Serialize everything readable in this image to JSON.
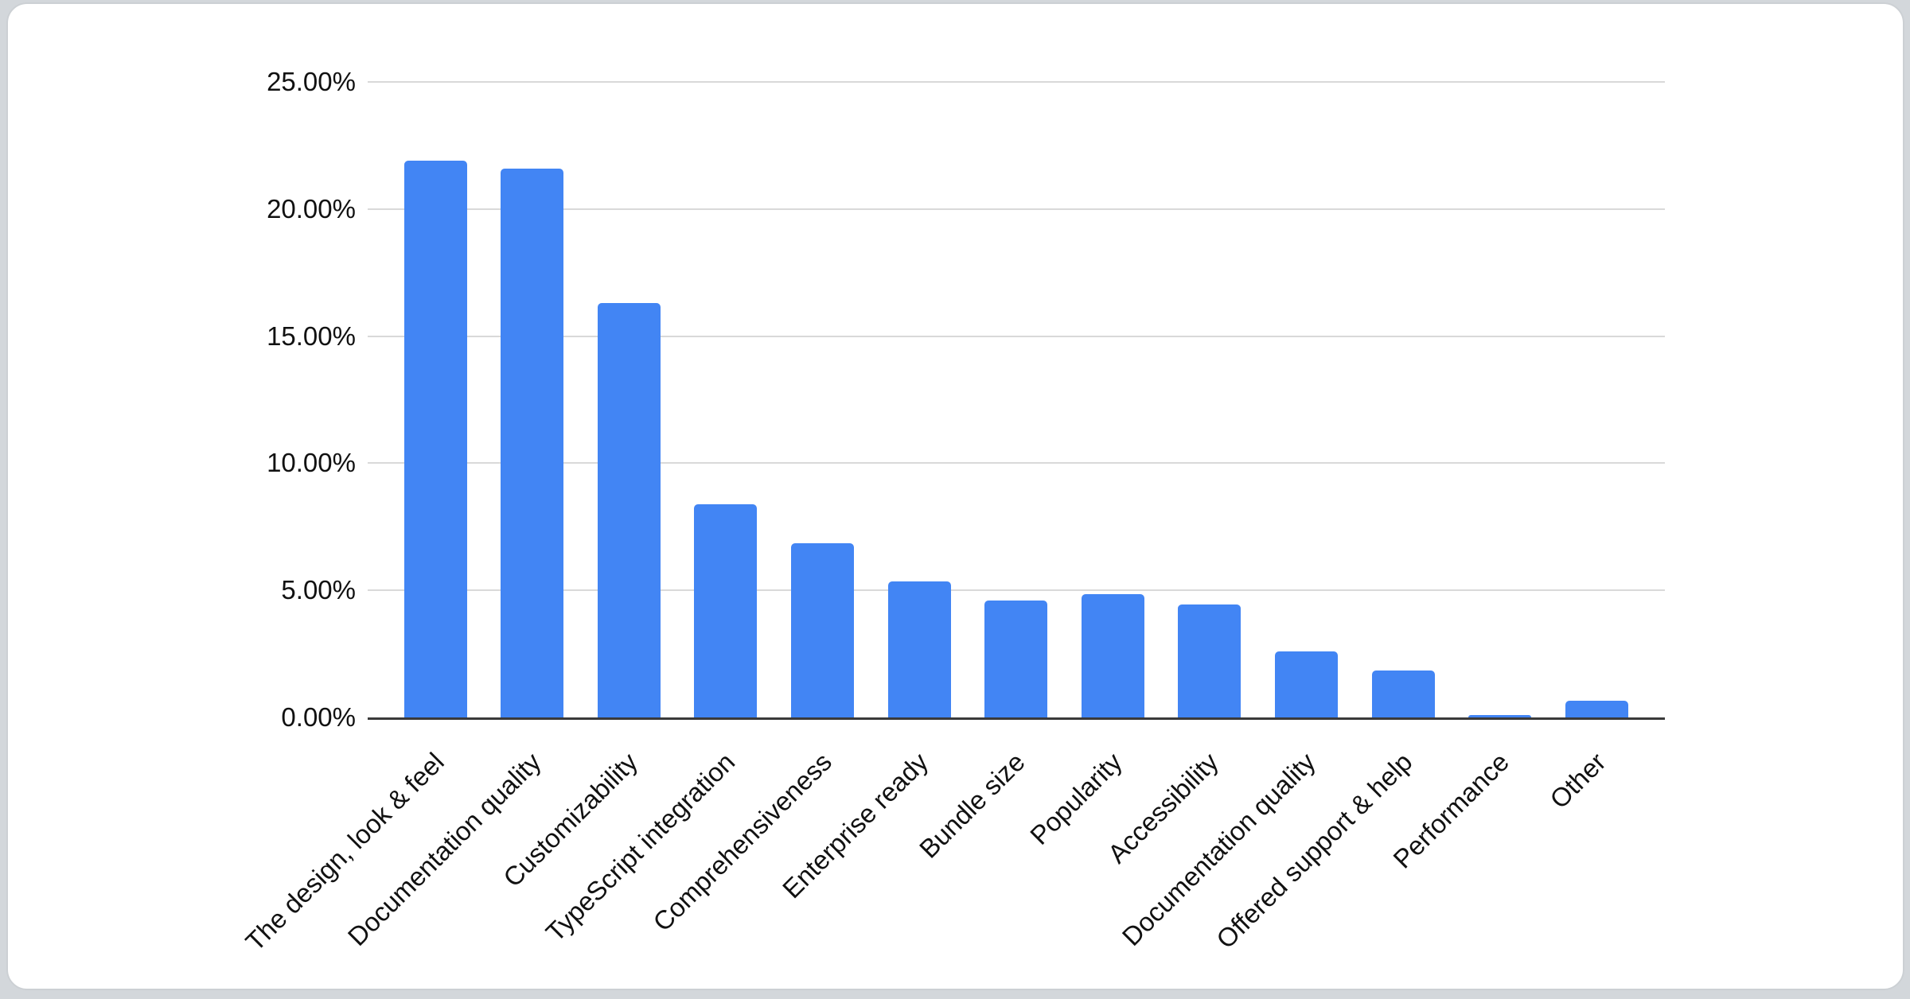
{
  "window": {
    "background_color": "#d3d7db",
    "card_background_color": "#ffffff",
    "card_border_color": "#ccd0d4"
  },
  "chart_data": {
    "type": "bar",
    "title": "",
    "xlabel": "",
    "ylabel": "",
    "categories": [
      "The design, look & feel",
      "Documentation quality",
      "Customizability",
      "TypeScript integration",
      "Comprehensiveness",
      "Enterprise ready",
      "Bundle size",
      "Popularity",
      "Accessibility",
      "Documentation quality",
      "Offered support & help",
      "Performance",
      "Other"
    ],
    "values": [
      21.9,
      21.6,
      16.3,
      8.4,
      6.85,
      5.35,
      4.6,
      4.85,
      4.45,
      2.6,
      1.85,
      0.1,
      0.65
    ],
    "value_unit": "%",
    "ylim": [
      0,
      25
    ],
    "y_tick_step": 5,
    "y_tick_labels": [
      "0.00%",
      "5.00%",
      "10.00%",
      "15.00%",
      "20.00%",
      "25.00%"
    ],
    "x_tick_rotation_deg": -45,
    "grid": true,
    "legend": "none",
    "bar_color": "#4285f4",
    "gridline_color": "#d9d9d9",
    "axis_line_color": "#3a3a3a",
    "tick_label_color": "#111111"
  }
}
